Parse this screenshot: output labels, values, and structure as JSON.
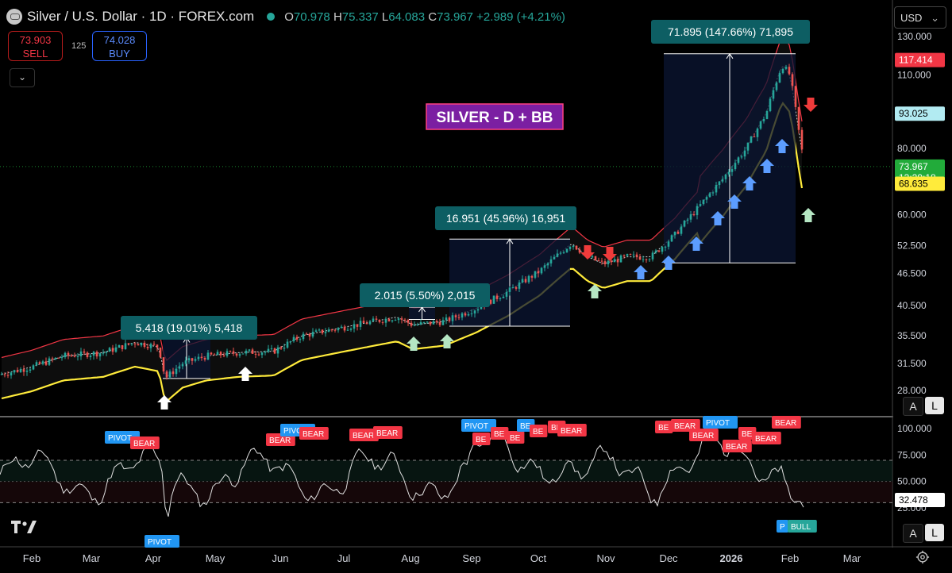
{
  "header": {
    "symbol": "Silver / U.S. Dollar · 1D · FOREX.com",
    "ohlc": [
      {
        "k": "O",
        "v": "70.978"
      },
      {
        "k": "H",
        "v": "75.337"
      },
      {
        "k": "L",
        "v": "64.083"
      },
      {
        "k": "C",
        "v": "73.967"
      }
    ],
    "change": "+2.989 (+4.21%)"
  },
  "trade": {
    "sell_price": "73.903",
    "sell_label": "SELL",
    "spread": "125",
    "buy_price": "74.028",
    "buy_label": "BUY"
  },
  "currency": "USD",
  "scale_buttons": [
    "A",
    "L"
  ],
  "price_axis": {
    "ticks": [
      "130.000",
      "110.000",
      "80.000",
      "60.000",
      "52.500",
      "46.500",
      "40.500",
      "35.500",
      "31.500",
      "28.000"
    ],
    "badges": [
      {
        "value": "117.414",
        "bg": "#f23645",
        "fg": "#ffffff"
      },
      {
        "value": "93.025",
        "bg": "#b2ebf2",
        "fg": "#000000"
      },
      {
        "value": "73.967",
        "extra": "13:29:18",
        "bg": "#22ab3a",
        "fg": "#ffffff"
      },
      {
        "value": "68.635",
        "bg": "#ffeb3b",
        "fg": "#000000"
      }
    ]
  },
  "osc_axis": {
    "ticks": [
      "100.000",
      "75.000",
      "50.000",
      "25.000"
    ],
    "current": "32.478"
  },
  "time_axis": [
    "Feb",
    "Mar",
    "Apr",
    "May",
    "Jun",
    "Jul",
    "Aug",
    "Sep",
    "Oct",
    "Nov",
    "Dec",
    "2026",
    "Feb",
    "Mar"
  ],
  "title_box": "SILVER - D + BB",
  "measures": [
    {
      "label": "5.418 (19.01%) 5,418"
    },
    {
      "label": "2.015 (5.50%) 2,015"
    },
    {
      "label": "16.951 (45.96%) 16,951"
    },
    {
      "label": "71.895 (147.66%) 71,895"
    }
  ],
  "osc_tags": {
    "pivot": "PIVOT",
    "bear": "BEAR",
    "bull": "BULL",
    "bear_short": "BE",
    "pivot_short": "P"
  },
  "colors": {
    "up": "#26a69a",
    "down": "#ef5350",
    "upper_band": "#f23645",
    "lower_band": "#ffeb3b",
    "basis": "#cfd8dc",
    "measure_fill": "#0b1633",
    "measure_label": "#0d5e63",
    "title_bg": "#7b1fa2",
    "title_border": "#ff4081",
    "arrow_blue": "#5c9dff",
    "arrow_green": "#b5e6c3",
    "arrow_red": "#ef3b3b",
    "arrow_white": "#ffffff"
  },
  "icons": [
    "silver-coin-icon",
    "market-status-icon",
    "chevron-down-icon",
    "tradingview-logo-icon",
    "settings-gear-icon"
  ]
}
